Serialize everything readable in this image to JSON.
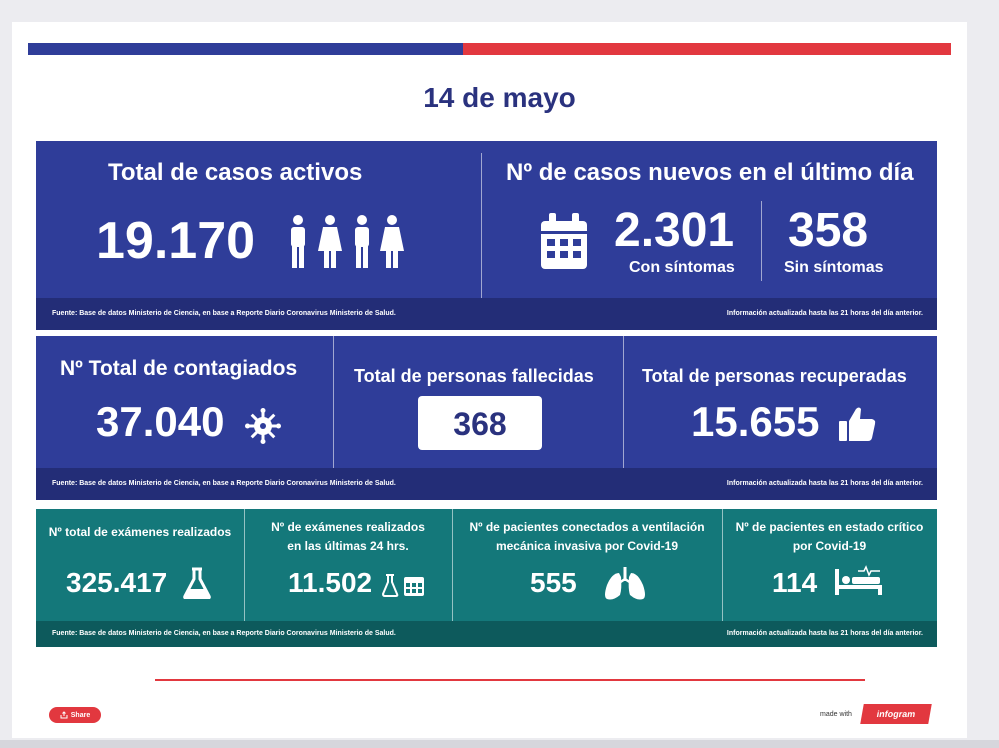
{
  "date": "14 de mayo",
  "colors": {
    "blue": "#2f3d99",
    "red": "#e2383f",
    "teal": "#14787a",
    "navy_text": "#2a327e"
  },
  "top": {
    "active_title": "Total de casos activos",
    "active_value": "19.170",
    "new_title": "Nº de casos nuevos en el último día",
    "symptomatic_value": "2.301",
    "symptomatic_label": "Con síntomas",
    "asymptomatic_value": "358",
    "asymptomatic_label": "Sin síntomas",
    "source": "Fuente: Base de datos Ministerio de Ciencia, en base a Reporte Diario Coronavirus Ministerio de Salud.",
    "updated": "Información actualizada hasta las 21 horas del día anterior."
  },
  "middle": {
    "infected_title": "Nº Total de contagiados",
    "infected_value": "37.040",
    "deaths_title": "Total de personas fallecidas",
    "deaths_value": "368",
    "recovered_title": "Total de personas recuperadas",
    "recovered_value": "15.655",
    "source": "Fuente: Base de datos Ministerio de Ciencia, en base a Reporte Diario Coronavirus Ministerio de Salud.",
    "updated": "Información actualizada hasta las 21 horas del día anterior."
  },
  "bottom": {
    "exams_title": "Nº total de exámenes realizados",
    "exams_value": "325.417",
    "exams24_title_1": "Nº de exámenes realizados",
    "exams24_title_2": "en las últimas 24 hrs.",
    "exams24_value": "11.502",
    "ventilation_title_1": "Nº de pacientes conectados a ventilación",
    "ventilation_title_2": "mecánica invasiva por Covid-19",
    "ventilation_value": "555",
    "critical_title_1": "Nº de pacientes en estado crítico",
    "critical_title_2": "por Covid-19",
    "critical_value": "114",
    "source": "Fuente: Base de datos Ministerio de Ciencia, en base a Reporte Diario Coronavirus Ministerio de Salud.",
    "updated": "Información actualizada hasta las 21 horas del día anterior."
  },
  "share_label": "Share",
  "made_with": "made with",
  "brand": "infogram",
  "icons": [
    "person-icon",
    "calendar-icon",
    "virus-icon",
    "thumbs-up-icon",
    "flask-icon",
    "lungs-icon",
    "hospital-bed-icon",
    "share-icon"
  ]
}
